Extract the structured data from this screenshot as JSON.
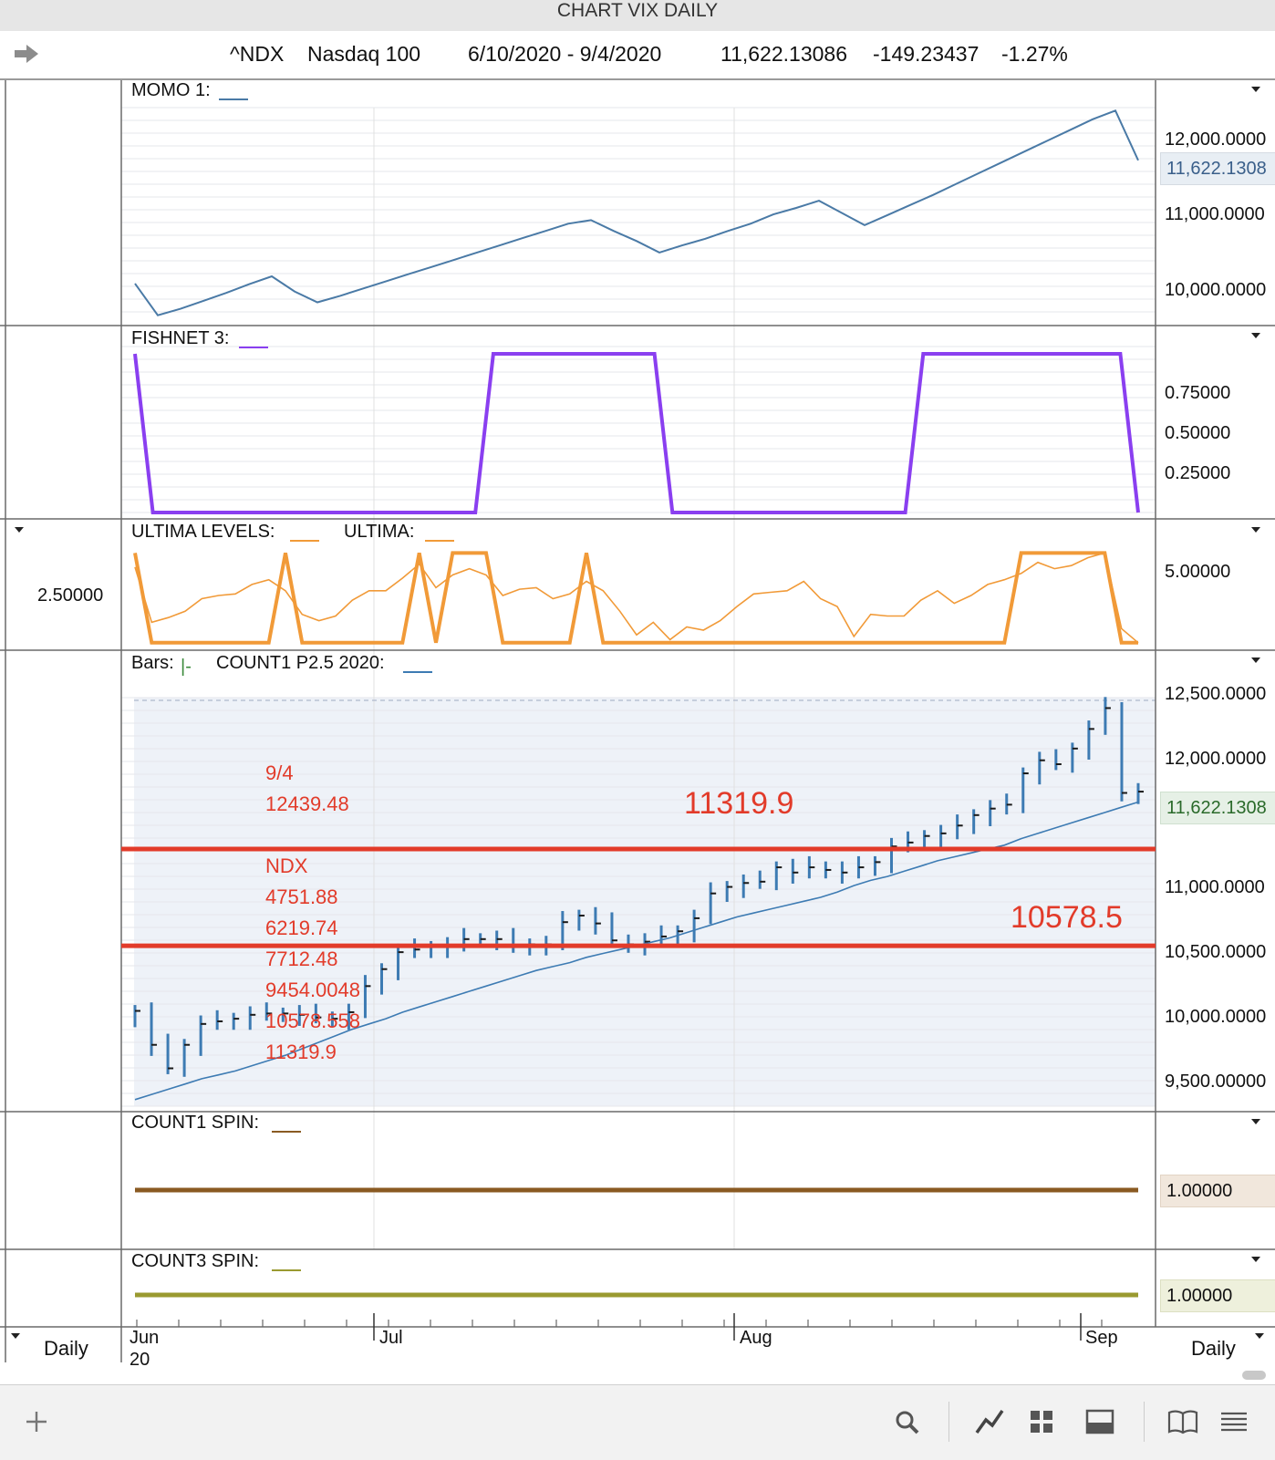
{
  "window": {
    "title": "CHART VIX DAILY"
  },
  "header": {
    "symbol": "^NDX",
    "name": "Nasdaq 100",
    "range": "6/10/2020 - 9/4/2020",
    "last": "11,622.13086",
    "change": "-149.23437",
    "pct": "-1.27%"
  },
  "panels": {
    "momo": {
      "label": "MOMO 1:",
      "ticks": [
        "12,000.0000",
        "11,000.0000",
        "10,000.0000"
      ],
      "current": "11,622.1308"
    },
    "fishnet": {
      "label": "FISHNET 3:",
      "ticks": [
        "0.75000",
        "0.50000",
        "0.25000"
      ]
    },
    "ultima": {
      "label1": "ULTIMA LEVELS:",
      "label2": "ULTIMA:",
      "tick_right": "5.00000",
      "tick_left": "2.50000"
    },
    "bars": {
      "label1": "Bars:",
      "label2": "COUNT1 P2.5 2020:",
      "ticks": [
        "12,500.0000",
        "12,000.0000",
        "11,000.0000",
        "10,500.0000",
        "10,000.0000",
        "9,500.00000"
      ],
      "current": "11,622.1308",
      "notes": [
        "9/4",
        "12439.48",
        "NDX",
        "4751.88",
        "6219.74",
        "7712.48",
        "9454.0048",
        "10578.558",
        "11319.9"
      ],
      "level_labels": [
        "11319.9",
        "10578.5"
      ]
    },
    "count1": {
      "label": "COUNT1 SPIN:",
      "value": "1.00000"
    },
    "count3": {
      "label": "COUNT3 SPIN:",
      "value": "1.00000"
    }
  },
  "x_axis": {
    "months": [
      "Jun",
      "Jul",
      "Aug",
      "Sep"
    ],
    "year": "20"
  },
  "period": {
    "left": "Daily",
    "right": "Daily"
  },
  "colors": {
    "momo": "#4a7aa6",
    "fishnet": "#8a3ff0",
    "ultima_levels": "#f19a38",
    "ultima": "#f19a38",
    "bars": "#3d7bb3",
    "level_line": "#e23b2a",
    "count1": "#8a5a22",
    "count3": "#9a9a30"
  },
  "chart_data": [
    {
      "type": "line",
      "title": "MOMO 1",
      "ylim": [
        9550,
        12550
      ],
      "series": [
        {
          "values": [
            10070,
            9630,
            9720,
            9830,
            9940,
            10060,
            10170,
            9960,
            9810,
            9900,
            10000,
            10100,
            10200,
            10300,
            10400,
            10500,
            10600,
            10700,
            10800,
            10900,
            10950,
            10800,
            10660,
            10500,
            10600,
            10690,
            10800,
            10900,
            11030,
            11120,
            11220,
            11050,
            10880,
            11020,
            11160,
            11300,
            11450,
            11600,
            11750,
            11900,
            12050,
            12200,
            12350,
            12470,
            11780
          ]
        }
      ]
    },
    {
      "type": "line",
      "title": "FISHNET 3",
      "ylim": [
        0,
        1
      ],
      "series": [
        {
          "values": [
            1,
            0,
            0,
            0,
            0,
            0,
            0,
            0,
            0,
            0,
            0,
            0,
            0,
            0,
            0,
            0,
            0,
            0,
            0,
            0,
            1,
            1,
            1,
            1,
            1,
            1,
            1,
            1,
            1,
            1,
            0,
            0,
            0,
            0,
            0,
            0,
            0,
            0,
            0,
            0,
            0,
            0,
            0,
            0,
            1,
            1,
            1,
            1,
            1,
            1,
            1,
            1,
            1,
            1,
            1,
            1,
            0
          ]
        }
      ]
    },
    {
      "type": "line",
      "title": "ULTIMA LEVELS / ULTIMA",
      "ylim": [
        0,
        6.6
      ],
      "series": [
        {
          "values": [
            6.0,
            0.3,
            0.3,
            0.3,
            0.3,
            0.3,
            0.3,
            0.3,
            0.3,
            6.0,
            0.3,
            0.3,
            0.3,
            0.3,
            0.3,
            0.3,
            0.3,
            6.0,
            0.3,
            6.0,
            6.0,
            6.0,
            0.3,
            0.3,
            0.3,
            0.3,
            0.3,
            6.0,
            0.3,
            0.3,
            0.3,
            0.3,
            0.3,
            0.3,
            0.3,
            0.3,
            0.3,
            0.3,
            0.3,
            0.3,
            0.3,
            0.3,
            0.3,
            0.3,
            0.3,
            0.3,
            0.3,
            0.3,
            0.3,
            0.3,
            0.3,
            0.3,
            0.3,
            6.0,
            6.0,
            6.0,
            6.0,
            6.0,
            6.0,
            0.3,
            0.3
          ]
        },
        {
          "values": [
            5.1,
            1.6,
            1.9,
            2.3,
            3.1,
            3.3,
            3.4,
            4.0,
            4.3,
            3.6,
            2.1,
            1.7,
            2.0,
            3.0,
            3.6,
            3.6,
            4.4,
            5.3,
            3.8,
            4.6,
            5.0,
            4.6,
            3.3,
            3.7,
            3.8,
            3.1,
            3.4,
            4.2,
            3.6,
            2.3,
            0.8,
            1.6,
            0.5,
            1.3,
            1.1,
            1.7,
            2.6,
            3.4,
            3.5,
            3.6,
            4.2,
            3.1,
            2.6,
            0.7,
            2.1,
            2.0,
            2.0,
            3.0,
            3.6,
            2.8,
            3.3,
            4.0,
            4.3,
            4.7,
            5.4,
            5.0,
            5.2,
            5.7,
            6.0,
            1.2,
            0.3
          ]
        }
      ]
    },
    {
      "type": "line",
      "title": "COUNT1 P2.5 2020",
      "ylim": [
        9350,
        12550
      ],
      "levels": [
        11319.9,
        10578.5
      ],
      "series": [
        {
          "values": [
            10080,
            9820,
            9640,
            9820,
            9980,
            10000,
            10020,
            10050,
            10060,
            10060,
            10050,
            10030,
            10020,
            10070,
            10270,
            10400,
            10530,
            10550,
            10570,
            10580,
            10630,
            10630,
            10630,
            10570,
            10590,
            10590,
            10760,
            10810,
            10750,
            10620,
            10590,
            10610,
            10650,
            10690,
            10790,
            10980,
            11030,
            11060,
            11070,
            11180,
            11140,
            11180,
            11160,
            11140,
            11180,
            11220,
            11340,
            11370,
            11420,
            11440,
            11500,
            11580,
            11630,
            11660,
            11900,
            12000,
            11970,
            12090,
            12240,
            12400,
            11750,
            11760
          ]
        },
        {
          "values": [
            9400,
            9440,
            9480,
            9520,
            9560,
            9590,
            9620,
            9660,
            9700,
            9740,
            9790,
            9840,
            9890,
            9940,
            9980,
            10020,
            10070,
            10110,
            10150,
            10190,
            10230,
            10270,
            10310,
            10350,
            10390,
            10420,
            10450,
            10490,
            10520,
            10550,
            10580,
            10610,
            10640,
            10680,
            10720,
            10760,
            10800,
            10830,
            10860,
            10890,
            10920,
            10950,
            10990,
            11040,
            11080,
            11110,
            11150,
            11190,
            11230,
            11260,
            11290,
            11320,
            11350,
            11400,
            11440,
            11480,
            11520,
            11560,
            11600,
            11640,
            11680
          ]
        }
      ]
    },
    {
      "type": "line",
      "title": "COUNT1 SPIN",
      "series": [
        {
          "values": [
            1,
            1
          ]
        }
      ]
    },
    {
      "type": "line",
      "title": "COUNT3 SPIN",
      "series": [
        {
          "values": [
            1,
            1
          ]
        }
      ]
    }
  ]
}
